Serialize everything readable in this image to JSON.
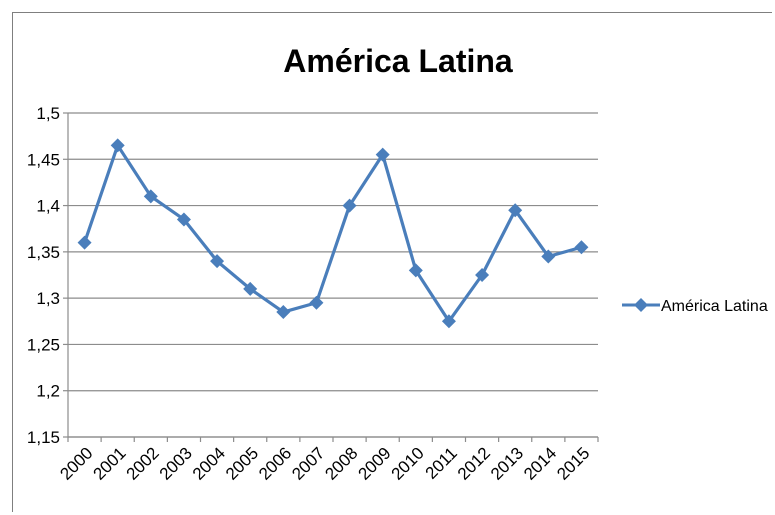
{
  "chart_data": {
    "type": "line",
    "title": "América Latina",
    "xlabel": "",
    "ylabel": "",
    "categories": [
      "2000",
      "2001",
      "2002",
      "2003",
      "2004",
      "2005",
      "2006",
      "2007",
      "2008",
      "2009",
      "2010",
      "2011",
      "2012",
      "2013",
      "2014",
      "2015"
    ],
    "y_ticks": [
      "1,5",
      "1,45",
      "1,4",
      "1,35",
      "1,3",
      "1,25",
      "1,2",
      "1,15"
    ],
    "ylim": [
      1.15,
      1.5
    ],
    "grid": true,
    "legend_position": "right",
    "series": [
      {
        "name": "América Latina",
        "color": "#4a7ebb",
        "marker": "diamond",
        "values": [
          1.36,
          1.465,
          1.41,
          1.385,
          1.34,
          1.31,
          1.285,
          1.295,
          1.4,
          1.455,
          1.33,
          1.275,
          1.325,
          1.395,
          1.345,
          1.355
        ]
      }
    ]
  }
}
